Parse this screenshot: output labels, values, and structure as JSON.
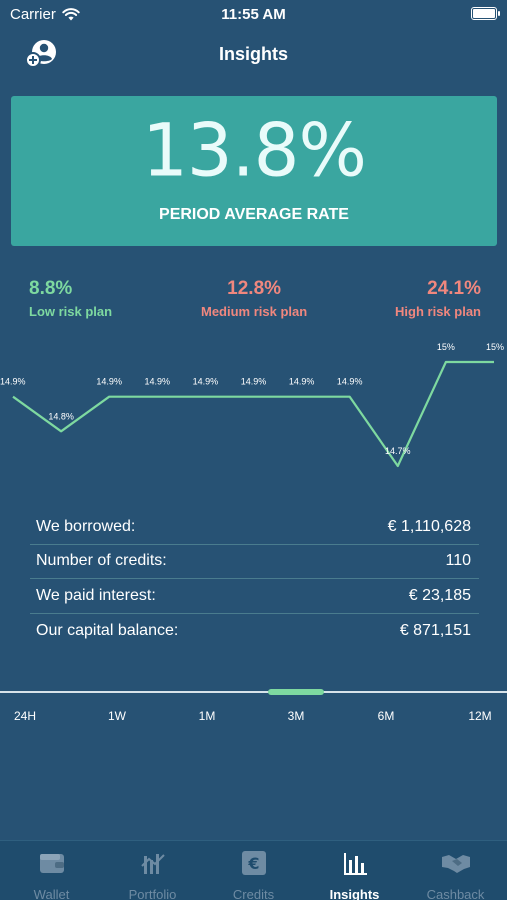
{
  "status_bar": {
    "carrier": "Carrier",
    "time": "11:55 AM"
  },
  "nav": {
    "title": "Insights",
    "add_user_icon": "add-user-icon"
  },
  "rate_card": {
    "value": "13.8%",
    "label": "PERIOD AVERAGE RATE"
  },
  "plans": [
    {
      "pct": "8.8%",
      "name": "Low risk plan",
      "color": "#7ed9a0"
    },
    {
      "pct": "12.8%",
      "name": "Medium risk plan",
      "color": "#f0877e"
    },
    {
      "pct": "24.1%",
      "name": "High risk plan",
      "color": "#f0877e"
    }
  ],
  "chart_data": {
    "type": "line",
    "series": [
      {
        "values": [
          14.9,
          14.8,
          14.9,
          14.9,
          14.9,
          14.9,
          14.9,
          14.9,
          14.7,
          15,
          15
        ]
      }
    ],
    "point_labels": [
      "14.9%",
      "14.8%",
      "14.9%",
      "14.9%",
      "14.9%",
      "14.9%",
      "14.9%",
      "14.9%",
      "14.7%",
      "15%",
      "15%"
    ],
    "ylim": [
      14.7,
      15
    ],
    "line_color": "#7ed9a0",
    "grid": false,
    "legend": "none"
  },
  "stats": [
    {
      "label": "We borrowed:",
      "value": "€ 1,110,628"
    },
    {
      "label": "Number of credits:",
      "value": "110"
    },
    {
      "label": "We paid interest:",
      "value": "€ 23,185"
    },
    {
      "label": "Our capital balance:",
      "value": "€ 871,151"
    }
  ],
  "timeline": {
    "periods": [
      "24H",
      "1W",
      "1M",
      "3M",
      "6M",
      "12M"
    ],
    "selected": "3M"
  },
  "tabs": [
    {
      "label": "Wallet",
      "icon": "wallet-icon",
      "active": false
    },
    {
      "label": "Portfolio",
      "icon": "portfolio-icon",
      "active": false
    },
    {
      "label": "Credits",
      "icon": "euro-credit-icon",
      "active": false
    },
    {
      "label": "Insights",
      "icon": "bar-chart-icon",
      "active": true
    },
    {
      "label": "Cashback",
      "icon": "handshake-icon",
      "active": false
    }
  ]
}
